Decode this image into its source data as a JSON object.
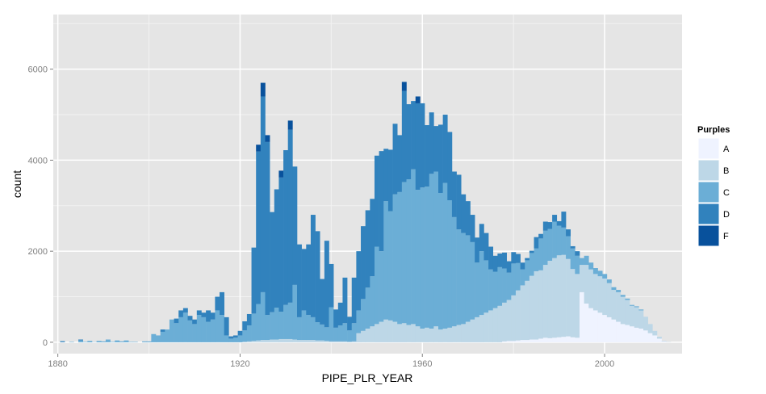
{
  "chart_data": {
    "type": "bar",
    "subtype": "stacked-histogram",
    "xlabel": "PIPE_PLR_YEAR",
    "ylabel": "count",
    "xlim": [
      1879,
      2017
    ],
    "ylim": [
      -250,
      7200
    ],
    "x_ticks": [
      1880,
      1920,
      1960,
      2000
    ],
    "y_ticks": [
      0,
      2000,
      4000,
      6000
    ],
    "grid": true,
    "legend": {
      "title": "Purples",
      "position": "right",
      "entries": [
        "A",
        "B",
        "C",
        "D",
        "F"
      ]
    },
    "colors": {
      "A": "#eff3ff",
      "B": "#bdd7e7",
      "C": "#6baed6",
      "D": "#3182bd",
      "F": "#08519c",
      "panel": "#e5e5e5",
      "grid": "#ffffff"
    },
    "stack_order": [
      "A",
      "B",
      "C",
      "D",
      "F"
    ],
    "x": [
      1881,
      1882,
      1883,
      1884,
      1885,
      1886,
      1887,
      1888,
      1889,
      1890,
      1891,
      1892,
      1893,
      1894,
      1895,
      1896,
      1897,
      1898,
      1899,
      1900,
      1901,
      1902,
      1903,
      1904,
      1905,
      1906,
      1907,
      1908,
      1909,
      1910,
      1911,
      1912,
      1913,
      1914,
      1915,
      1916,
      1917,
      1918,
      1919,
      1920,
      1921,
      1922,
      1923,
      1924,
      1925,
      1926,
      1927,
      1928,
      1929,
      1930,
      1931,
      1932,
      1933,
      1934,
      1935,
      1936,
      1937,
      1938,
      1939,
      1940,
      1941,
      1942,
      1943,
      1944,
      1945,
      1946,
      1947,
      1948,
      1949,
      1950,
      1951,
      1952,
      1953,
      1954,
      1955,
      1956,
      1957,
      1958,
      1959,
      1960,
      1961,
      1962,
      1963,
      1964,
      1965,
      1966,
      1967,
      1968,
      1969,
      1970,
      1971,
      1972,
      1973,
      1974,
      1975,
      1976,
      1977,
      1978,
      1979,
      1980,
      1981,
      1982,
      1983,
      1984,
      1985,
      1986,
      1987,
      1988,
      1989,
      1990,
      1991,
      1992,
      1993,
      1994,
      1995,
      1996,
      1997,
      1998,
      1999,
      2000,
      2001,
      2002,
      2003,
      2004,
      2005,
      2006,
      2007,
      2008,
      2009,
      2010,
      2011,
      2012,
      2013,
      2014
    ],
    "series": [
      {
        "name": "A",
        "values": [
          0,
          0,
          0,
          0,
          0,
          0,
          0,
          0,
          0,
          0,
          0,
          0,
          0,
          0,
          0,
          0,
          0,
          0,
          0,
          0,
          0,
          0,
          0,
          0,
          0,
          0,
          0,
          0,
          0,
          0,
          0,
          0,
          0,
          0,
          0,
          0,
          0,
          0,
          0,
          0,
          0,
          0,
          0,
          0,
          0,
          0,
          0,
          0,
          0,
          0,
          0,
          0,
          0,
          0,
          0,
          0,
          0,
          0,
          0,
          0,
          0,
          0,
          0,
          0,
          0,
          0,
          0,
          0,
          0,
          0,
          0,
          0,
          0,
          0,
          0,
          0,
          0,
          0,
          0,
          0,
          0,
          0,
          0,
          0,
          0,
          0,
          0,
          0,
          0,
          0,
          0,
          0,
          0,
          0,
          0,
          0,
          0,
          20,
          30,
          30,
          40,
          50,
          50,
          60,
          60,
          80,
          100,
          90,
          100,
          110,
          120,
          130,
          110,
          100,
          1100,
          850,
          750,
          700,
          650,
          600,
          550,
          500,
          450,
          400,
          380,
          350,
          320,
          300,
          260,
          200,
          150,
          80,
          20,
          5
        ]
      },
      {
        "name": "B",
        "values": [
          0,
          0,
          0,
          0,
          0,
          0,
          0,
          0,
          0,
          0,
          0,
          0,
          0,
          0,
          0,
          0,
          0,
          0,
          0,
          0,
          0,
          0,
          0,
          0,
          0,
          0,
          0,
          0,
          0,
          0,
          0,
          0,
          0,
          0,
          0,
          0,
          0,
          0,
          0,
          0,
          10,
          20,
          30,
          40,
          50,
          50,
          60,
          60,
          70,
          70,
          70,
          60,
          50,
          50,
          50,
          50,
          40,
          40,
          30,
          20,
          20,
          20,
          20,
          10,
          20,
          200,
          250,
          300,
          350,
          400,
          450,
          500,
          480,
          450,
          400,
          420,
          380,
          400,
          350,
          300,
          320,
          300,
          350,
          280,
          300,
          320,
          350,
          380,
          400,
          450,
          500,
          550,
          600,
          650,
          700,
          750,
          800,
          850,
          900,
          1000,
          1100,
          1200,
          1300,
          1400,
          1500,
          1500,
          1600,
          1700,
          1750,
          1800,
          1800,
          1700,
          1500,
          1400,
          600,
          850,
          850,
          800,
          800,
          800,
          750,
          650,
          650,
          600,
          550,
          450,
          450,
          400,
          300,
          200,
          100,
          40,
          10,
          5
        ]
      },
      {
        "name": "C",
        "values": [
          5,
          0,
          10,
          0,
          40,
          10,
          30,
          5,
          30,
          20,
          60,
          10,
          40,
          20,
          40,
          10,
          10,
          0,
          20,
          20,
          180,
          150,
          230,
          280,
          500,
          420,
          550,
          650,
          480,
          400,
          600,
          550,
          450,
          500,
          700,
          600,
          150,
          80,
          100,
          150,
          250,
          350,
          600,
          800,
          1050,
          550,
          600,
          700,
          600,
          750,
          800,
          1200,
          500,
          650,
          550,
          500,
          400,
          350,
          300,
          750,
          300,
          350,
          400,
          250,
          400,
          500,
          700,
          900,
          1100,
          1700,
          1550,
          2600,
          2400,
          2800,
          2900,
          3100,
          3200,
          3400,
          3000,
          3100,
          3100,
          3400,
          3400,
          3000,
          3200,
          2800,
          2400,
          2100,
          2000,
          1900,
          1700,
          1200,
          1400,
          1150,
          900,
          800,
          850,
          750,
          600,
          700,
          600,
          350,
          450,
          500,
          500,
          700,
          750,
          700,
          800,
          650,
          600,
          500,
          450,
          400,
          150,
          200,
          150,
          130,
          120,
          100,
          80,
          60,
          50,
          40,
          30,
          20,
          20,
          20,
          0,
          0,
          0,
          0,
          0,
          0
        ]
      },
      {
        "name": "D",
        "values": [
          20,
          0,
          0,
          0,
          20,
          0,
          0,
          0,
          0,
          0,
          0,
          0,
          0,
          0,
          0,
          0,
          0,
          0,
          0,
          0,
          0,
          0,
          50,
          0,
          0,
          100,
          150,
          100,
          100,
          100,
          100,
          100,
          250,
          150,
          300,
          500,
          400,
          50,
          50,
          100,
          200,
          250,
          1450,
          3350,
          4300,
          3800,
          2200,
          2600,
          2950,
          3400,
          3800,
          2600,
          1600,
          1350,
          1550,
          2250,
          2000,
          1000,
          1900,
          950,
          400,
          500,
          1000,
          300,
          1000,
          1300,
          1600,
          1700,
          1700,
          2000,
          2200,
          1150,
          1350,
          1550,
          1250,
          2000,
          1650,
          1500,
          1900,
          1850,
          1350,
          1350,
          1000,
          1500,
          1500,
          1500,
          1000,
          1200,
          850,
          750,
          600,
          550,
          600,
          600,
          500,
          350,
          300,
          350,
          250,
          250,
          200,
          150,
          50,
          50,
          250,
          100,
          200,
          150,
          150,
          100,
          350,
          150,
          50,
          100,
          0,
          0,
          0,
          0,
          0,
          0,
          0,
          0,
          0,
          0,
          0,
          0,
          0,
          0,
          0,
          0,
          0,
          0,
          0,
          0
        ]
      },
      {
        "name": "F",
        "values": [
          0,
          0,
          0,
          0,
          0,
          0,
          0,
          0,
          0,
          0,
          0,
          0,
          0,
          0,
          0,
          0,
          0,
          0,
          0,
          0,
          0,
          0,
          0,
          0,
          0,
          0,
          0,
          0,
          0,
          0,
          0,
          0,
          0,
          0,
          0,
          0,
          0,
          0,
          0,
          0,
          0,
          0,
          0,
          150,
          300,
          150,
          0,
          0,
          150,
          0,
          200,
          0,
          0,
          0,
          0,
          0,
          0,
          0,
          0,
          0,
          0,
          0,
          0,
          0,
          0,
          0,
          0,
          0,
          0,
          0,
          0,
          0,
          0,
          0,
          0,
          200,
          0,
          0,
          150,
          0,
          0,
          0,
          0,
          0,
          0,
          0,
          0,
          0,
          0,
          0,
          0,
          0,
          0,
          0,
          0,
          0,
          0,
          0,
          0,
          0,
          0,
          0,
          0,
          0,
          0,
          0,
          0,
          0,
          0,
          0,
          0,
          0,
          0,
          0,
          0,
          0,
          0,
          0,
          0,
          0,
          0,
          0,
          0,
          0,
          0,
          0,
          0,
          0,
          0,
          0,
          0,
          0,
          0,
          0
        ]
      }
    ]
  }
}
